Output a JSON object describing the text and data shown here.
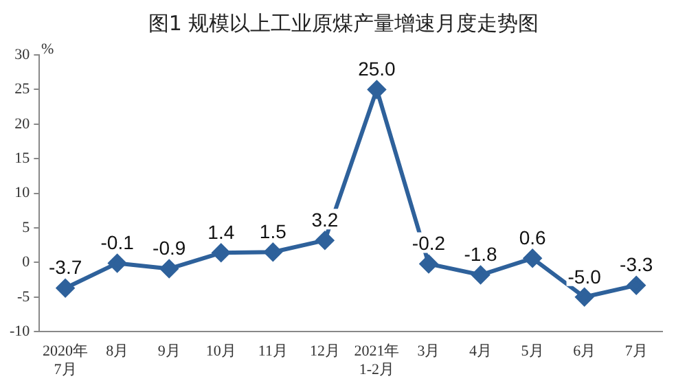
{
  "chart_data": {
    "type": "line",
    "title": "图1  规模以上工业原煤产量增速月度走势图",
    "ylabel": "%",
    "categories": [
      "2020年\n7月",
      "8月",
      "9月",
      "10月",
      "11月",
      "12月",
      "2021年\n1-2月",
      "3月",
      "4月",
      "5月",
      "6月",
      "7月"
    ],
    "series": [
      {
        "color": "#2e619b",
        "values": [
          -3.7,
          -0.1,
          -0.9,
          1.4,
          1.5,
          3.2,
          25.0,
          -0.2,
          -1.8,
          0.6,
          -5.0,
          -3.3
        ]
      }
    ],
    "value_labels": [
      "-3.7",
      "-0.1",
      "-0.9",
      "1.4",
      "1.5",
      "3.2",
      "25.0",
      "-0.2",
      "-1.8",
      "0.6",
      "-5.0",
      "-3.3"
    ],
    "ylim": [
      -10,
      30
    ],
    "yticks": [
      -10,
      -5,
      0,
      5,
      10,
      15,
      20,
      25,
      30
    ],
    "grid": false,
    "legend": false,
    "marker": "diamond",
    "line_style": "solid"
  }
}
